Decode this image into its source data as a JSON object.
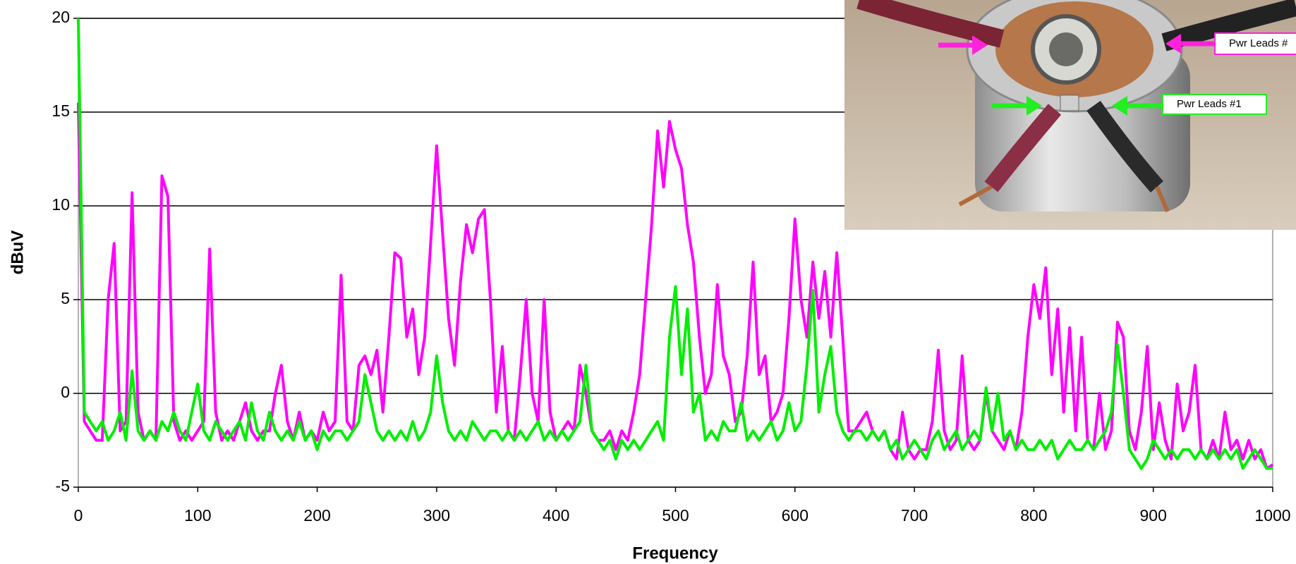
{
  "chart_data": {
    "type": "line",
    "xlabel": "Frequency",
    "ylabel": "dBuV",
    "annotations": [
      "Pwr Leads #",
      "Pwr Leads #1"
    ],
    "xlim": [
      0,
      1000
    ],
    "xticks": [
      0,
      100,
      200,
      300,
      400,
      500,
      600,
      700,
      800,
      900,
      1000
    ],
    "ylim": [
      -5,
      20
    ],
    "yticks": [
      -5,
      0,
      5,
      10,
      15,
      20
    ],
    "grid": true,
    "x": [
      0,
      5,
      10,
      15,
      20,
      25,
      30,
      35,
      40,
      45,
      50,
      55,
      60,
      65,
      70,
      75,
      80,
      85,
      90,
      95,
      100,
      105,
      110,
      115,
      120,
      125,
      130,
      135,
      140,
      145,
      150,
      155,
      160,
      165,
      170,
      175,
      180,
      185,
      190,
      195,
      200,
      205,
      210,
      215,
      220,
      225,
      230,
      235,
      240,
      245,
      250,
      255,
      260,
      265,
      270,
      275,
      280,
      285,
      290,
      295,
      300,
      305,
      310,
      315,
      320,
      325,
      330,
      335,
      340,
      345,
      350,
      355,
      360,
      365,
      370,
      375,
      380,
      385,
      390,
      395,
      400,
      405,
      410,
      415,
      420,
      425,
      430,
      435,
      440,
      445,
      450,
      455,
      460,
      465,
      470,
      475,
      480,
      485,
      490,
      495,
      500,
      505,
      510,
      515,
      520,
      525,
      530,
      535,
      540,
      545,
      550,
      555,
      560,
      565,
      570,
      575,
      580,
      585,
      590,
      595,
      600,
      605,
      610,
      615,
      620,
      625,
      630,
      635,
      640,
      645,
      650,
      655,
      660,
      665,
      670,
      675,
      680,
      685,
      690,
      695,
      700,
      705,
      710,
      715,
      720,
      725,
      730,
      735,
      740,
      745,
      750,
      755,
      760,
      765,
      770,
      775,
      780,
      785,
      790,
      795,
      800,
      805,
      810,
      815,
      820,
      825,
      830,
      835,
      840,
      845,
      850,
      855,
      860,
      865,
      870,
      875,
      880,
      885,
      890,
      895,
      900,
      905,
      910,
      915,
      920,
      925,
      930,
      935,
      940,
      945,
      950,
      955,
      960,
      965,
      970,
      975,
      980,
      985,
      990,
      995,
      1000
    ],
    "series": [
      {
        "color": "#ff00ff",
        "values": [
          15.5,
          -1.5,
          -2,
          -2.5,
          -2.5,
          5,
          8,
          -2,
          -1.5,
          10.7,
          -1,
          -2.5,
          -2,
          -2.5,
          11.6,
          10.5,
          -1.5,
          -2.5,
          -2,
          -2.5,
          -2,
          -1.5,
          7.7,
          -1,
          -2.5,
          -2,
          -2.5,
          -1.5,
          -0.5,
          -2,
          -2.5,
          -2,
          -2,
          0,
          1.5,
          -1.5,
          -2.5,
          -1,
          -2.5,
          -2,
          -2.5,
          -1,
          -2,
          -1.5,
          6.3,
          -1.5,
          -2,
          1.5,
          2,
          1,
          2.3,
          -1,
          3,
          7.5,
          7.2,
          3,
          4.5,
          1,
          3,
          8,
          13.2,
          8.5,
          4,
          1.5,
          6,
          9,
          7.5,
          9.3,
          9.8,
          5,
          -1,
          2.5,
          -2,
          -2.5,
          1,
          5,
          0,
          -1.5,
          5,
          -1,
          -2.5,
          -2,
          -1.5,
          -2,
          1.5,
          0,
          -2,
          -2.5,
          -2.5,
          -2,
          -3,
          -2,
          -2.5,
          -1,
          1,
          5,
          9,
          14,
          11,
          14.5,
          13,
          12,
          9,
          7,
          3,
          0,
          1,
          5.8,
          2,
          1,
          -1.5,
          -1,
          2,
          7,
          1,
          2,
          -1.5,
          -1,
          0,
          4,
          9.3,
          5,
          3,
          7,
          4,
          6.5,
          3,
          7.5,
          3,
          -2,
          -2,
          -1.5,
          -1,
          -2,
          -2.5,
          -2,
          -3,
          -3.5,
          -1,
          -3,
          -3.5,
          -3,
          -3,
          -1.5,
          2.3,
          -2,
          -3,
          -2.5,
          2,
          -2.5,
          -3,
          -2.5,
          0,
          -2,
          -2.5,
          -3,
          -2,
          -3,
          -1,
          3,
          5.8,
          4,
          6.7,
          1,
          4.5,
          -1,
          3.5,
          -2,
          3,
          -2.5,
          -3,
          0,
          -3,
          -2,
          3.8,
          3,
          -2,
          -3,
          -1,
          2.5,
          -3,
          -0.5,
          -2.5,
          -3.5,
          0.5,
          -2,
          -1,
          1.5,
          -3,
          -3.5,
          -2.5,
          -3.5,
          -1,
          -3,
          -2.5,
          -3.5,
          -2.5,
          -3.5,
          -3,
          -4,
          -3.8
        ]
      },
      {
        "color": "#00ee00",
        "values": [
          20,
          -1,
          -1.5,
          -2,
          -1.5,
          -2.5,
          -2,
          -1,
          -2.5,
          1.2,
          -2,
          -2.5,
          -2,
          -2.5,
          -1.5,
          -2,
          -1,
          -2,
          -2.5,
          -1,
          0.5,
          -2,
          -2.5,
          -1.5,
          -2,
          -2.5,
          -2,
          -1.5,
          -2.5,
          -0.5,
          -2,
          -2.5,
          -1,
          -2,
          -2.5,
          -2,
          -2.5,
          -1.5,
          -2.5,
          -2,
          -3,
          -2,
          -2.5,
          -2,
          -2,
          -2.5,
          -2,
          -1.5,
          1,
          -0.5,
          -2,
          -2.5,
          -2,
          -2.5,
          -2,
          -2.5,
          -1.5,
          -2.5,
          -2,
          -1,
          2,
          -0.5,
          -2,
          -2.5,
          -2,
          -2.5,
          -1.5,
          -2,
          -2.5,
          -2,
          -2,
          -2.5,
          -2,
          -2.5,
          -2,
          -2.5,
          -2,
          -1.5,
          -2.5,
          -2,
          -2.5,
          -2,
          -2.5,
          -2,
          -1.5,
          1.5,
          -2,
          -2.5,
          -3,
          -2.5,
          -3.5,
          -2.5,
          -3,
          -2.5,
          -3,
          -2.5,
          -2,
          -1.5,
          -2.5,
          3,
          5.7,
          1,
          4.5,
          -1,
          0,
          -2.5,
          -2,
          -2.5,
          -1.5,
          -2,
          -2,
          -0.5,
          -2.5,
          -2,
          -2.5,
          -2,
          -1.5,
          -2.5,
          -2,
          -0.5,
          -2,
          -1.5,
          1.5,
          5.5,
          -1,
          1,
          2.5,
          -1,
          -2,
          -2.5,
          -2,
          -2,
          -2.5,
          -2,
          -2.5,
          -2,
          -3,
          -2.5,
          -3.5,
          -3,
          -2.5,
          -3,
          -3.5,
          -2.5,
          -2,
          -3,
          -2.5,
          -2,
          -3,
          -2.5,
          -2,
          -2.5,
          0.3,
          -2,
          0,
          -2.5,
          -2,
          -3,
          -2.5,
          -3,
          -3,
          -2.5,
          -3,
          -2.5,
          -3.5,
          -3,
          -2.5,
          -3,
          -3,
          -2.5,
          -3,
          -2.5,
          -2,
          -1,
          2.6,
          0,
          -3,
          -3.5,
          -4,
          -3.5,
          -2.5,
          -3,
          -3.5,
          -3,
          -3.5,
          -3,
          -3,
          -3.5,
          -3,
          -3.5,
          -3,
          -3.5,
          -3,
          -3.5,
          -3,
          -4,
          -3.5,
          -3,
          -3.5,
          -4,
          -4
        ]
      }
    ]
  }
}
